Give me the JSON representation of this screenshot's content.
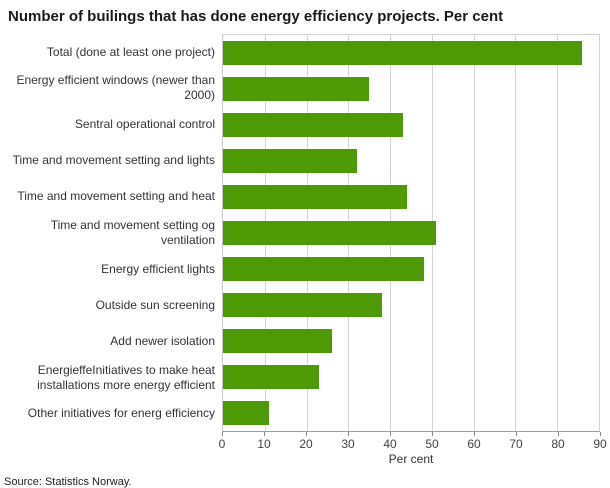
{
  "title": "Number of builings that has done energy efficiency projects. Per cent",
  "source": "Source: Statistics Norway.",
  "chart_data": {
    "type": "bar",
    "orientation": "horizontal",
    "title": "Number of builings that has done energy efficiency projects. Per cent",
    "categories": [
      "Total (done at least one project)",
      "Energy efficient windows (newer than 2000)",
      "Sentral operational control",
      "Time and movement setting and lights",
      "Time and movement setting and heat",
      "Time and movement setting og ventilation",
      "Energy efficient lights",
      "Outside sun screening",
      "Add newer isolation",
      "EnergieffeInitiatives to make heat installations more energy efficient",
      "Other initiatives for energ efficiency"
    ],
    "values": [
      86,
      35,
      43,
      32,
      44,
      51,
      48,
      38,
      26,
      23,
      11
    ],
    "xlabel": "Per cent",
    "xlim": [
      0,
      90
    ],
    "xticks": [
      0,
      10,
      20,
      30,
      40,
      50,
      60,
      70,
      80,
      90
    ],
    "bar_color": "#4e9a06",
    "grid": true,
    "legend": "none"
  }
}
